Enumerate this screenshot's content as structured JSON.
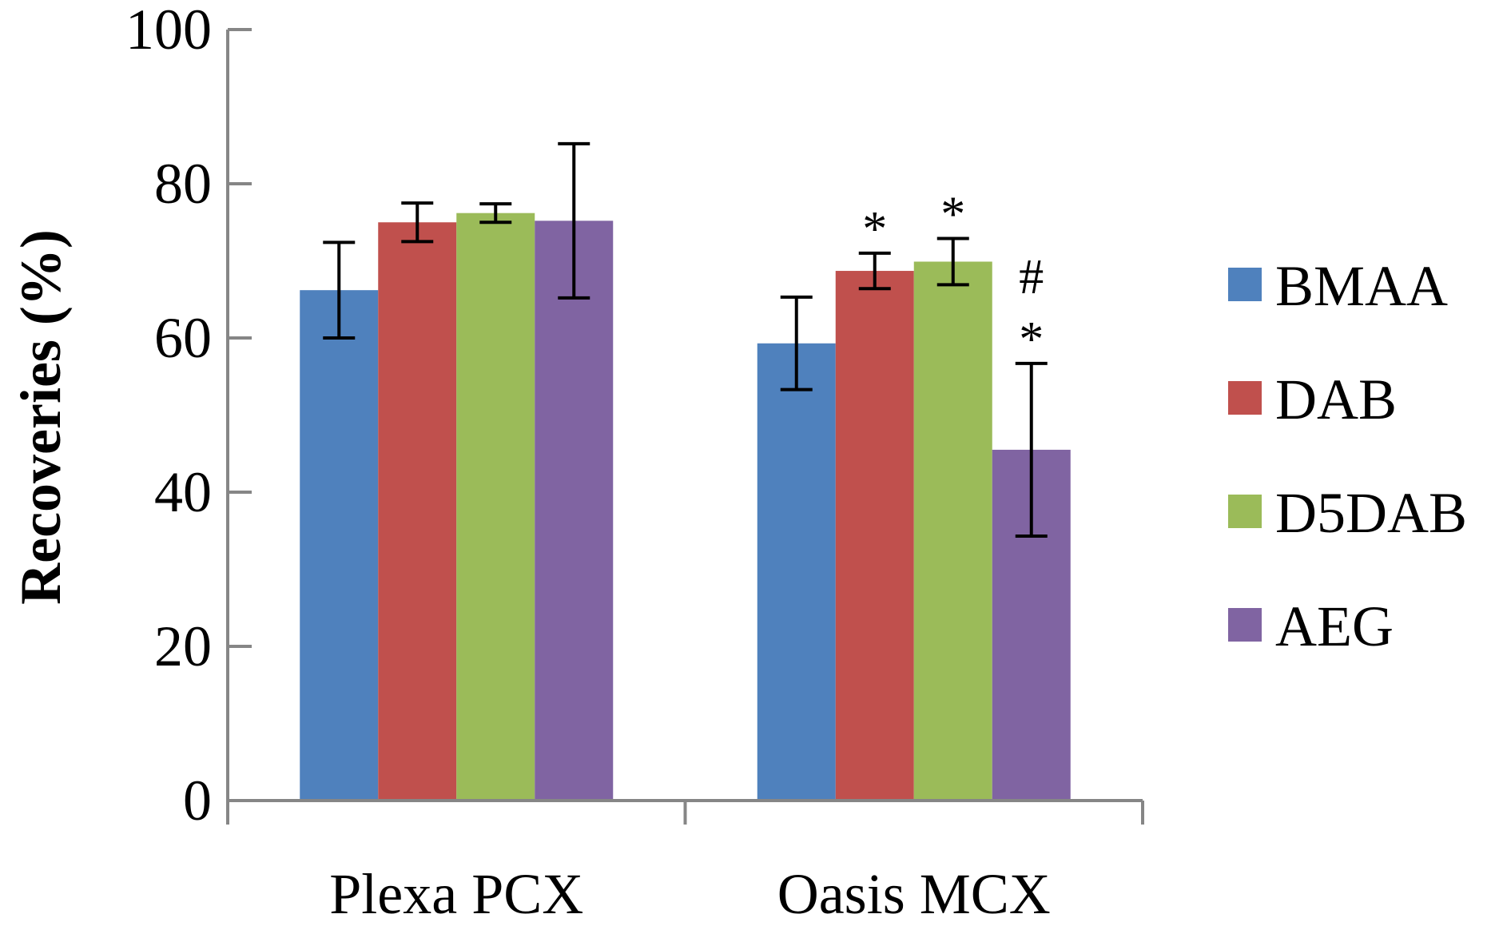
{
  "chart_data": {
    "type": "bar",
    "title": "",
    "xlabel": "",
    "ylabel": "Recoveries (%)",
    "ylim": [
      0,
      100
    ],
    "yticks": [
      0,
      20,
      40,
      60,
      80,
      100
    ],
    "grid": false,
    "legend_position": "right",
    "categories": [
      "Plexa PCX",
      "Oasis MCX"
    ],
    "series": [
      {
        "name": "BMAA",
        "color": "#4F81BD",
        "values": [
          66.2,
          59.3
        ],
        "errors": [
          6.2,
          6.0
        ]
      },
      {
        "name": "DAB",
        "color": "#C0504D",
        "values": [
          75.0,
          68.7
        ],
        "errors": [
          2.5,
          2.3
        ]
      },
      {
        "name": "D5DAB",
        "color": "#9BBB59",
        "values": [
          76.2,
          69.9
        ],
        "errors": [
          1.2,
          3.0
        ]
      },
      {
        "name": "AEG",
        "color": "#8064A2",
        "values": [
          75.2,
          45.5
        ],
        "errors": [
          10.0,
          11.2
        ]
      }
    ],
    "annotations": [
      {
        "category": "Oasis MCX",
        "series": "DAB",
        "lines": [
          "*"
        ]
      },
      {
        "category": "Oasis MCX",
        "series": "D5DAB",
        "lines": [
          "*"
        ]
      },
      {
        "category": "Oasis MCX",
        "series": "AEG",
        "lines": [
          "#",
          "*"
        ]
      }
    ]
  }
}
